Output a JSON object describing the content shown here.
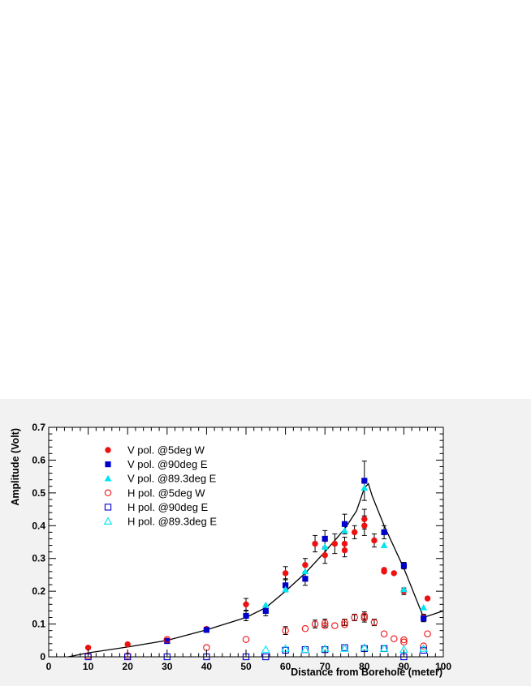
{
  "chart_data": {
    "type": "scatter",
    "title": "",
    "xlabel": "Distance from Borehole (meter)",
    "ylabel": "Amplitude (Volt)",
    "xlim": [
      0,
      100
    ],
    "ylim": [
      0,
      0.7
    ],
    "x_ticks": [
      0,
      10,
      20,
      30,
      40,
      50,
      60,
      70,
      80,
      90,
      100
    ],
    "y_ticks": [
      0,
      0.1,
      0.2,
      0.3,
      0.4,
      0.5,
      0.6,
      0.7
    ],
    "grid": false,
    "legend_position": "top-left",
    "series": [
      {
        "name": "V pol. @5deg W",
        "marker": "circle-filled",
        "color": "#ee1111",
        "x": [
          10,
          20,
          30,
          40,
          50,
          60,
          65,
          67.5,
          70,
          72.5,
          75,
          75,
          77.5,
          80,
          80,
          82.5,
          85,
          85,
          87.5,
          90,
          95,
          96
        ],
        "y": [
          0.028,
          0.038,
          0.05,
          0.085,
          0.16,
          0.255,
          0.28,
          0.345,
          0.31,
          0.345,
          0.345,
          0.325,
          0.38,
          0.4,
          0.42,
          0.355,
          0.265,
          0.26,
          0.255,
          0.2,
          0.12,
          0.178
        ],
        "err": [
          0,
          0,
          0,
          0,
          0.018,
          0.02,
          0.02,
          0.025,
          0.025,
          0.03,
          0.02,
          0.02,
          0.02,
          0.03,
          0.03,
          0.02,
          0,
          0,
          0,
          0.01,
          0.01,
          0
        ]
      },
      {
        "name": "V pol. @90deg E",
        "marker": "square-filled",
        "color": "#0000cc",
        "x": [
          30,
          40,
          50,
          55,
          60,
          65,
          70,
          75,
          80,
          85,
          90,
          95
        ],
        "y": [
          0.048,
          0.082,
          0.125,
          0.14,
          0.218,
          0.238,
          0.36,
          0.405,
          0.537,
          0.38,
          0.278,
          0.117
        ],
        "err": [
          0,
          0,
          0.015,
          0.015,
          0.02,
          0.02,
          0.025,
          0.03,
          0.06,
          0.02,
          0.01,
          0.01
        ]
      },
      {
        "name": "V pol. @89.3deg E",
        "marker": "triangle-filled",
        "color": "#00e5f2",
        "x": [
          55,
          60,
          65,
          70,
          75,
          80,
          85,
          90,
          95
        ],
        "y": [
          0.158,
          0.205,
          0.26,
          0.335,
          0.385,
          0.515,
          0.34,
          0.205,
          0.15
        ],
        "err": [
          0,
          0,
          0,
          0,
          0,
          0,
          0,
          0,
          0
        ]
      },
      {
        "name": "H pol. @5deg W",
        "marker": "circle-open",
        "color": "#ee1111",
        "x": [
          10,
          20,
          30,
          40,
          50,
          60,
          65,
          67.5,
          70,
          70,
          72.5,
          75,
          75,
          77.5,
          80,
          80,
          82.5,
          85,
          87.5,
          90,
          90,
          95,
          96
        ],
        "y": [
          0.003,
          0.003,
          0.053,
          0.028,
          0.053,
          0.08,
          0.086,
          0.1,
          0.103,
          0.095,
          0.095,
          0.105,
          0.098,
          0.12,
          0.118,
          0.125,
          0.105,
          0.07,
          0.055,
          0.052,
          0.045,
          0.033,
          0.07
        ],
        "err": [
          0,
          0,
          0,
          0,
          0,
          0.012,
          0,
          0.012,
          0.012,
          0,
          0,
          0.01,
          0,
          0.01,
          0.012,
          0.012,
          0.01,
          0,
          0,
          0,
          0,
          0,
          0
        ]
      },
      {
        "name": "H pol. @90deg E",
        "marker": "square-open",
        "color": "#0000cc",
        "x": [
          10,
          20,
          30,
          40,
          50,
          55,
          60,
          65,
          70,
          75,
          80,
          85,
          90,
          95
        ],
        "y": [
          0,
          0,
          0,
          0,
          0,
          0,
          0.02,
          0.022,
          0.022,
          0.028,
          0.025,
          0.025,
          0,
          0.02
        ],
        "err": [
          0,
          0,
          0,
          0,
          0,
          0,
          0,
          0,
          0,
          0,
          0,
          0,
          0,
          0
        ]
      },
      {
        "name": "H pol. @89.3deg E",
        "marker": "triangle-open",
        "color": "#00e5f2",
        "x": [
          55,
          60,
          65,
          70,
          75,
          80,
          85,
          90,
          95
        ],
        "y": [
          0.022,
          0.025,
          0.022,
          0.025,
          0.025,
          0.028,
          0.025,
          0.022,
          0.025
        ],
        "err": [
          0,
          0,
          0,
          0,
          0,
          0,
          0,
          0,
          0
        ]
      }
    ],
    "model_curve": {
      "color": "#000000",
      "x": [
        5,
        10,
        20,
        30,
        40,
        50,
        55,
        60,
        65,
        70,
        75,
        78,
        80,
        81,
        82,
        85,
        90,
        95,
        100
      ],
      "y": [
        0,
        0.012,
        0.03,
        0.05,
        0.082,
        0.12,
        0.15,
        0.2,
        0.255,
        0.32,
        0.39,
        0.445,
        0.515,
        0.528,
        0.49,
        0.4,
        0.27,
        0.12,
        0.14
      ]
    }
  }
}
